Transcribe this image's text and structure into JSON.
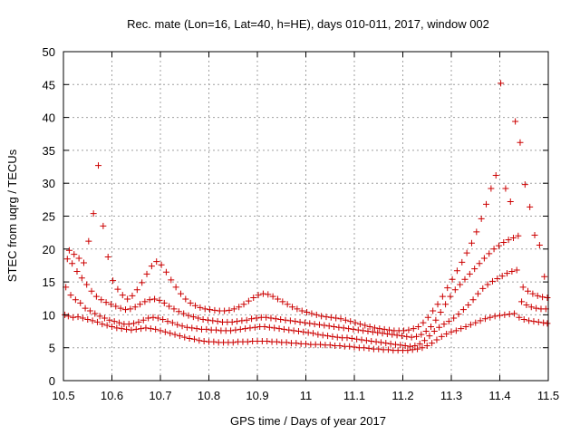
{
  "chart_data": {
    "type": "scatter",
    "title": "Rec. mate (Lon=16, Lat=40, h=HE), days 010-011, 2017, window 002",
    "xlabel": "GPS time / Days of year 2017",
    "ylabel": "STEC from uqrg / TECUs",
    "xlim": [
      10.5,
      11.5
    ],
    "ylim": [
      0,
      50
    ],
    "xticks": [
      10.5,
      10.6,
      10.7,
      10.8,
      10.9,
      11,
      11.1,
      11.2,
      11.3,
      11.4,
      11.5
    ],
    "xtick_labels": [
      "10.5",
      "10.6",
      "10.7",
      "10.8",
      "10.9",
      "11",
      "11.1",
      "11.2",
      "11.3",
      "11.4",
      "11.5"
    ],
    "yticks": [
      0,
      5,
      10,
      15,
      20,
      25,
      30,
      35,
      40,
      45,
      50
    ],
    "ytick_labels": [
      "0",
      "5",
      "10",
      "15",
      "20",
      "25",
      "30",
      "35",
      "40",
      "45",
      "50"
    ],
    "grid": true,
    "marker": "plus",
    "color": "#cc0000",
    "series": [
      {
        "x": [
          10.503,
          10.51,
          10.52,
          10.53,
          10.54,
          10.55,
          10.56,
          10.57,
          10.58,
          10.59,
          10.6,
          10.61,
          10.62,
          10.63,
          10.64,
          10.65,
          10.66,
          10.67,
          10.68,
          10.69,
          10.7,
          10.71,
          10.72,
          10.73,
          10.74,
          10.75,
          10.76,
          10.77,
          10.78,
          10.79,
          10.8,
          10.81,
          10.82,
          10.83,
          10.84,
          10.85,
          10.86,
          10.87,
          10.88,
          10.89,
          10.9,
          10.91,
          10.92,
          10.93,
          10.94,
          10.95,
          10.96,
          10.97,
          10.98,
          10.99,
          11.0,
          11.01,
          11.02,
          11.03,
          11.04,
          11.05,
          11.06,
          11.07,
          11.08,
          11.09,
          11.1,
          11.11,
          11.12,
          11.13,
          11.14,
          11.15,
          11.16,
          11.17,
          11.18,
          11.19,
          11.2,
          11.21,
          11.22,
          11.23,
          11.24,
          11.25,
          11.26,
          11.27,
          11.28,
          11.29,
          11.3,
          11.31,
          11.32,
          11.33,
          11.34,
          11.35,
          11.36,
          11.37,
          11.38,
          11.39,
          11.4,
          11.41,
          11.42,
          11.43,
          11.44,
          11.45,
          11.46,
          11.47,
          11.48,
          11.49,
          11.498
        ],
        "y": [
          10.0,
          9.8,
          9.6,
          9.7,
          9.5,
          9.3,
          9.1,
          8.9,
          8.6,
          8.4,
          8.2,
          8.0,
          7.9,
          7.8,
          7.7,
          7.8,
          7.9,
          8.0,
          7.9,
          7.8,
          7.6,
          7.4,
          7.2,
          7.0,
          6.8,
          6.6,
          6.4,
          6.3,
          6.1,
          6.0,
          5.9,
          5.9,
          5.8,
          5.8,
          5.8,
          5.8,
          5.9,
          5.9,
          5.9,
          6.0,
          6.0,
          6.0,
          6.0,
          5.9,
          5.9,
          5.8,
          5.8,
          5.7,
          5.7,
          5.6,
          5.6,
          5.5,
          5.5,
          5.5,
          5.4,
          5.4,
          5.3,
          5.3,
          5.2,
          5.2,
          5.1,
          5.0,
          5.0,
          4.9,
          4.8,
          4.8,
          4.7,
          4.7,
          4.6,
          4.6,
          4.6,
          4.6,
          4.7,
          4.8,
          5.0,
          5.3,
          5.7,
          6.2,
          6.7,
          7.1,
          7.4,
          7.6,
          7.9,
          8.2,
          8.5,
          8.8,
          9.1,
          9.4,
          9.6,
          9.8,
          9.9,
          10.0,
          10.1,
          10.2,
          9.6,
          9.3,
          9.1,
          9.0,
          8.9,
          8.8,
          8.7
        ]
      },
      {
        "x": [
          10.505,
          10.515,
          10.525,
          10.535,
          10.545,
          10.555,
          10.565,
          10.575,
          10.585,
          10.595,
          10.605,
          10.615,
          10.625,
          10.635,
          10.645,
          10.655,
          10.665,
          10.675,
          10.685,
          10.695,
          10.705,
          10.715,
          10.725,
          10.735,
          10.745,
          10.755,
          10.765,
          10.775,
          10.785,
          10.795,
          10.805,
          10.815,
          10.825,
          10.835,
          10.845,
          10.855,
          10.865,
          10.875,
          10.885,
          10.895,
          10.905,
          10.915,
          10.925,
          10.935,
          10.945,
          10.955,
          10.965,
          10.975,
          10.985,
          10.995,
          11.005,
          11.015,
          11.025,
          11.035,
          11.045,
          11.055,
          11.065,
          11.075,
          11.085,
          11.095,
          11.105,
          11.115,
          11.125,
          11.135,
          11.145,
          11.155,
          11.165,
          11.175,
          11.185,
          11.195,
          11.205,
          11.215,
          11.225,
          11.235,
          11.245,
          11.255,
          11.265,
          11.275,
          11.285,
          11.295,
          11.305,
          11.315,
          11.325,
          11.335,
          11.345,
          11.355,
          11.365,
          11.375,
          11.385,
          11.395,
          11.405,
          11.415,
          11.425,
          11.435,
          11.445,
          11.455,
          11.465,
          11.475,
          11.485,
          11.495
        ],
        "y": [
          14.2,
          13.0,
          12.3,
          11.8,
          11.0,
          10.6,
          10.2,
          9.8,
          9.5,
          9.2,
          9.0,
          8.8,
          8.6,
          8.6,
          8.7,
          8.9,
          9.2,
          9.5,
          9.6,
          9.5,
          9.3,
          9.0,
          8.8,
          8.5,
          8.3,
          8.1,
          8.0,
          7.9,
          7.8,
          7.8,
          7.7,
          7.7,
          7.6,
          7.6,
          7.6,
          7.7,
          7.8,
          7.9,
          8.0,
          8.1,
          8.2,
          8.2,
          8.1,
          8.0,
          7.9,
          7.8,
          7.7,
          7.6,
          7.5,
          7.4,
          7.3,
          7.2,
          7.0,
          6.9,
          6.8,
          6.7,
          6.6,
          6.5,
          6.5,
          6.4,
          6.3,
          6.2,
          6.1,
          6.0,
          5.9,
          5.8,
          5.7,
          5.6,
          5.5,
          5.4,
          5.3,
          5.2,
          5.3,
          5.6,
          6.1,
          6.8,
          7.5,
          8.1,
          8.6,
          9.0,
          9.5,
          10.1,
          10.8,
          11.5,
          12.3,
          13.2,
          14.0,
          14.6,
          15.1,
          15.5,
          15.9,
          16.3,
          16.6,
          16.8,
          12.0,
          11.5,
          11.2,
          11.0,
          10.9,
          10.9
        ]
      },
      {
        "x": [
          10.508,
          10.518,
          10.528,
          10.538,
          10.548,
          10.558,
          10.568,
          10.578,
          10.588,
          10.598,
          10.608,
          10.618,
          10.628,
          10.638,
          10.648,
          10.658,
          10.668,
          10.678,
          10.688,
          10.698,
          10.708,
          10.718,
          10.728,
          10.738,
          10.748,
          10.758,
          10.768,
          10.778,
          10.788,
          10.798,
          10.808,
          10.818,
          10.828,
          10.838,
          10.848,
          10.858,
          10.868,
          10.878,
          10.888,
          10.898,
          10.908,
          10.918,
          10.928,
          10.938,
          10.948,
          10.958,
          10.968,
          10.978,
          10.988,
          10.998,
          11.008,
          11.018,
          11.028,
          11.038,
          11.048,
          11.058,
          11.068,
          11.078,
          11.088,
          11.098,
          11.108,
          11.118,
          11.128,
          11.138,
          11.148,
          11.158,
          11.168,
          11.178,
          11.188,
          11.198,
          11.208,
          11.218,
          11.228,
          11.238,
          11.248,
          11.258,
          11.268,
          11.278,
          11.288,
          11.298,
          11.308,
          11.318,
          11.328,
          11.338,
          11.348,
          11.358,
          11.368,
          11.378,
          11.388,
          11.398,
          11.408,
          11.418,
          11.428,
          11.438,
          11.448,
          11.458,
          11.468,
          11.478,
          11.488,
          11.498
        ],
        "y": [
          18.5,
          17.8,
          16.6,
          15.6,
          14.6,
          13.6,
          12.8,
          12.3,
          11.9,
          11.6,
          11.3,
          11.0,
          10.8,
          10.9,
          11.2,
          11.6,
          12.0,
          12.3,
          12.4,
          12.2,
          11.8,
          11.3,
          10.9,
          10.5,
          10.2,
          9.9,
          9.7,
          9.5,
          9.3,
          9.2,
          9.1,
          9.0,
          8.9,
          8.9,
          8.9,
          9.0,
          9.1,
          9.2,
          9.4,
          9.5,
          9.6,
          9.6,
          9.5,
          9.4,
          9.3,
          9.2,
          9.1,
          9.0,
          8.9,
          8.8,
          8.7,
          8.6,
          8.5,
          8.4,
          8.3,
          8.2,
          8.1,
          8.0,
          7.9,
          7.8,
          7.7,
          7.6,
          7.5,
          7.4,
          7.3,
          7.2,
          7.1,
          7.0,
          6.9,
          6.8,
          6.7,
          6.6,
          6.7,
          7.0,
          7.5,
          8.2,
          9.2,
          10.4,
          11.6,
          12.8,
          13.8,
          14.6,
          15.4,
          16.2,
          17.0,
          17.8,
          18.6,
          19.3,
          20.0,
          20.5,
          21.0,
          21.4,
          21.7,
          22.0,
          14.2,
          13.6,
          13.2,
          12.9,
          12.7,
          12.6
        ]
      },
      {
        "x": [
          10.512,
          10.522,
          10.532,
          10.542,
          10.552,
          10.562,
          10.572,
          10.582,
          10.592,
          10.602,
          10.612,
          10.622,
          10.632,
          10.642,
          10.652,
          10.662,
          10.672,
          10.682,
          10.692,
          10.702,
          10.712,
          10.722,
          10.732,
          10.742,
          10.752,
          10.762,
          10.772,
          10.782,
          10.792,
          10.802,
          10.812,
          10.822,
          10.832,
          10.842,
          10.852,
          10.862,
          10.872,
          10.882,
          10.892,
          10.902,
          10.912,
          10.922,
          10.932,
          10.942,
          10.952,
          10.962,
          10.972,
          10.982,
          10.992,
          11.002,
          11.012,
          11.022,
          11.032,
          11.042,
          11.052,
          11.062,
          11.072,
          11.082,
          11.092,
          11.102,
          11.112,
          11.122,
          11.132,
          11.142,
          11.152,
          11.162,
          11.172,
          11.182,
          11.192,
          11.202,
          11.212,
          11.222,
          11.232,
          11.242,
          11.252,
          11.262,
          11.272,
          11.282,
          11.292,
          11.302,
          11.312,
          11.322,
          11.332,
          11.342,
          11.352,
          11.362,
          11.372,
          11.382,
          11.392,
          11.402,
          11.412,
          11.422,
          11.432,
          11.442,
          11.452,
          11.462,
          11.472,
          11.482,
          11.492
        ],
        "y": [
          19.8,
          19.2,
          18.6,
          17.9,
          21.2,
          25.4,
          32.7,
          23.5,
          18.8,
          15.2,
          13.9,
          13.0,
          12.4,
          12.9,
          13.8,
          14.9,
          16.2,
          17.4,
          18.1,
          17.6,
          16.5,
          15.3,
          14.2,
          13.2,
          12.4,
          11.8,
          11.4,
          11.1,
          10.9,
          10.8,
          10.7,
          10.6,
          10.6,
          10.7,
          10.9,
          11.2,
          11.6,
          12.1,
          12.6,
          13.0,
          13.2,
          13.1,
          12.8,
          12.4,
          12.0,
          11.6,
          11.2,
          10.9,
          10.6,
          10.4,
          10.2,
          10.0,
          9.8,
          9.7,
          9.6,
          9.5,
          9.4,
          9.2,
          9.0,
          8.8,
          8.6,
          8.4,
          8.2,
          8.0,
          7.9,
          7.8,
          7.7,
          7.6,
          7.6,
          7.6,
          7.7,
          7.9,
          8.2,
          8.8,
          9.6,
          10.6,
          11.6,
          12.8,
          14.1,
          15.4,
          16.7,
          18.0,
          19.4,
          20.9,
          22.6,
          24.6,
          26.8,
          29.2,
          31.2,
          45.2,
          29.2,
          27.2,
          39.4,
          36.2,
          29.8,
          26.4,
          22.1,
          20.6,
          15.8
        ]
      }
    ]
  }
}
